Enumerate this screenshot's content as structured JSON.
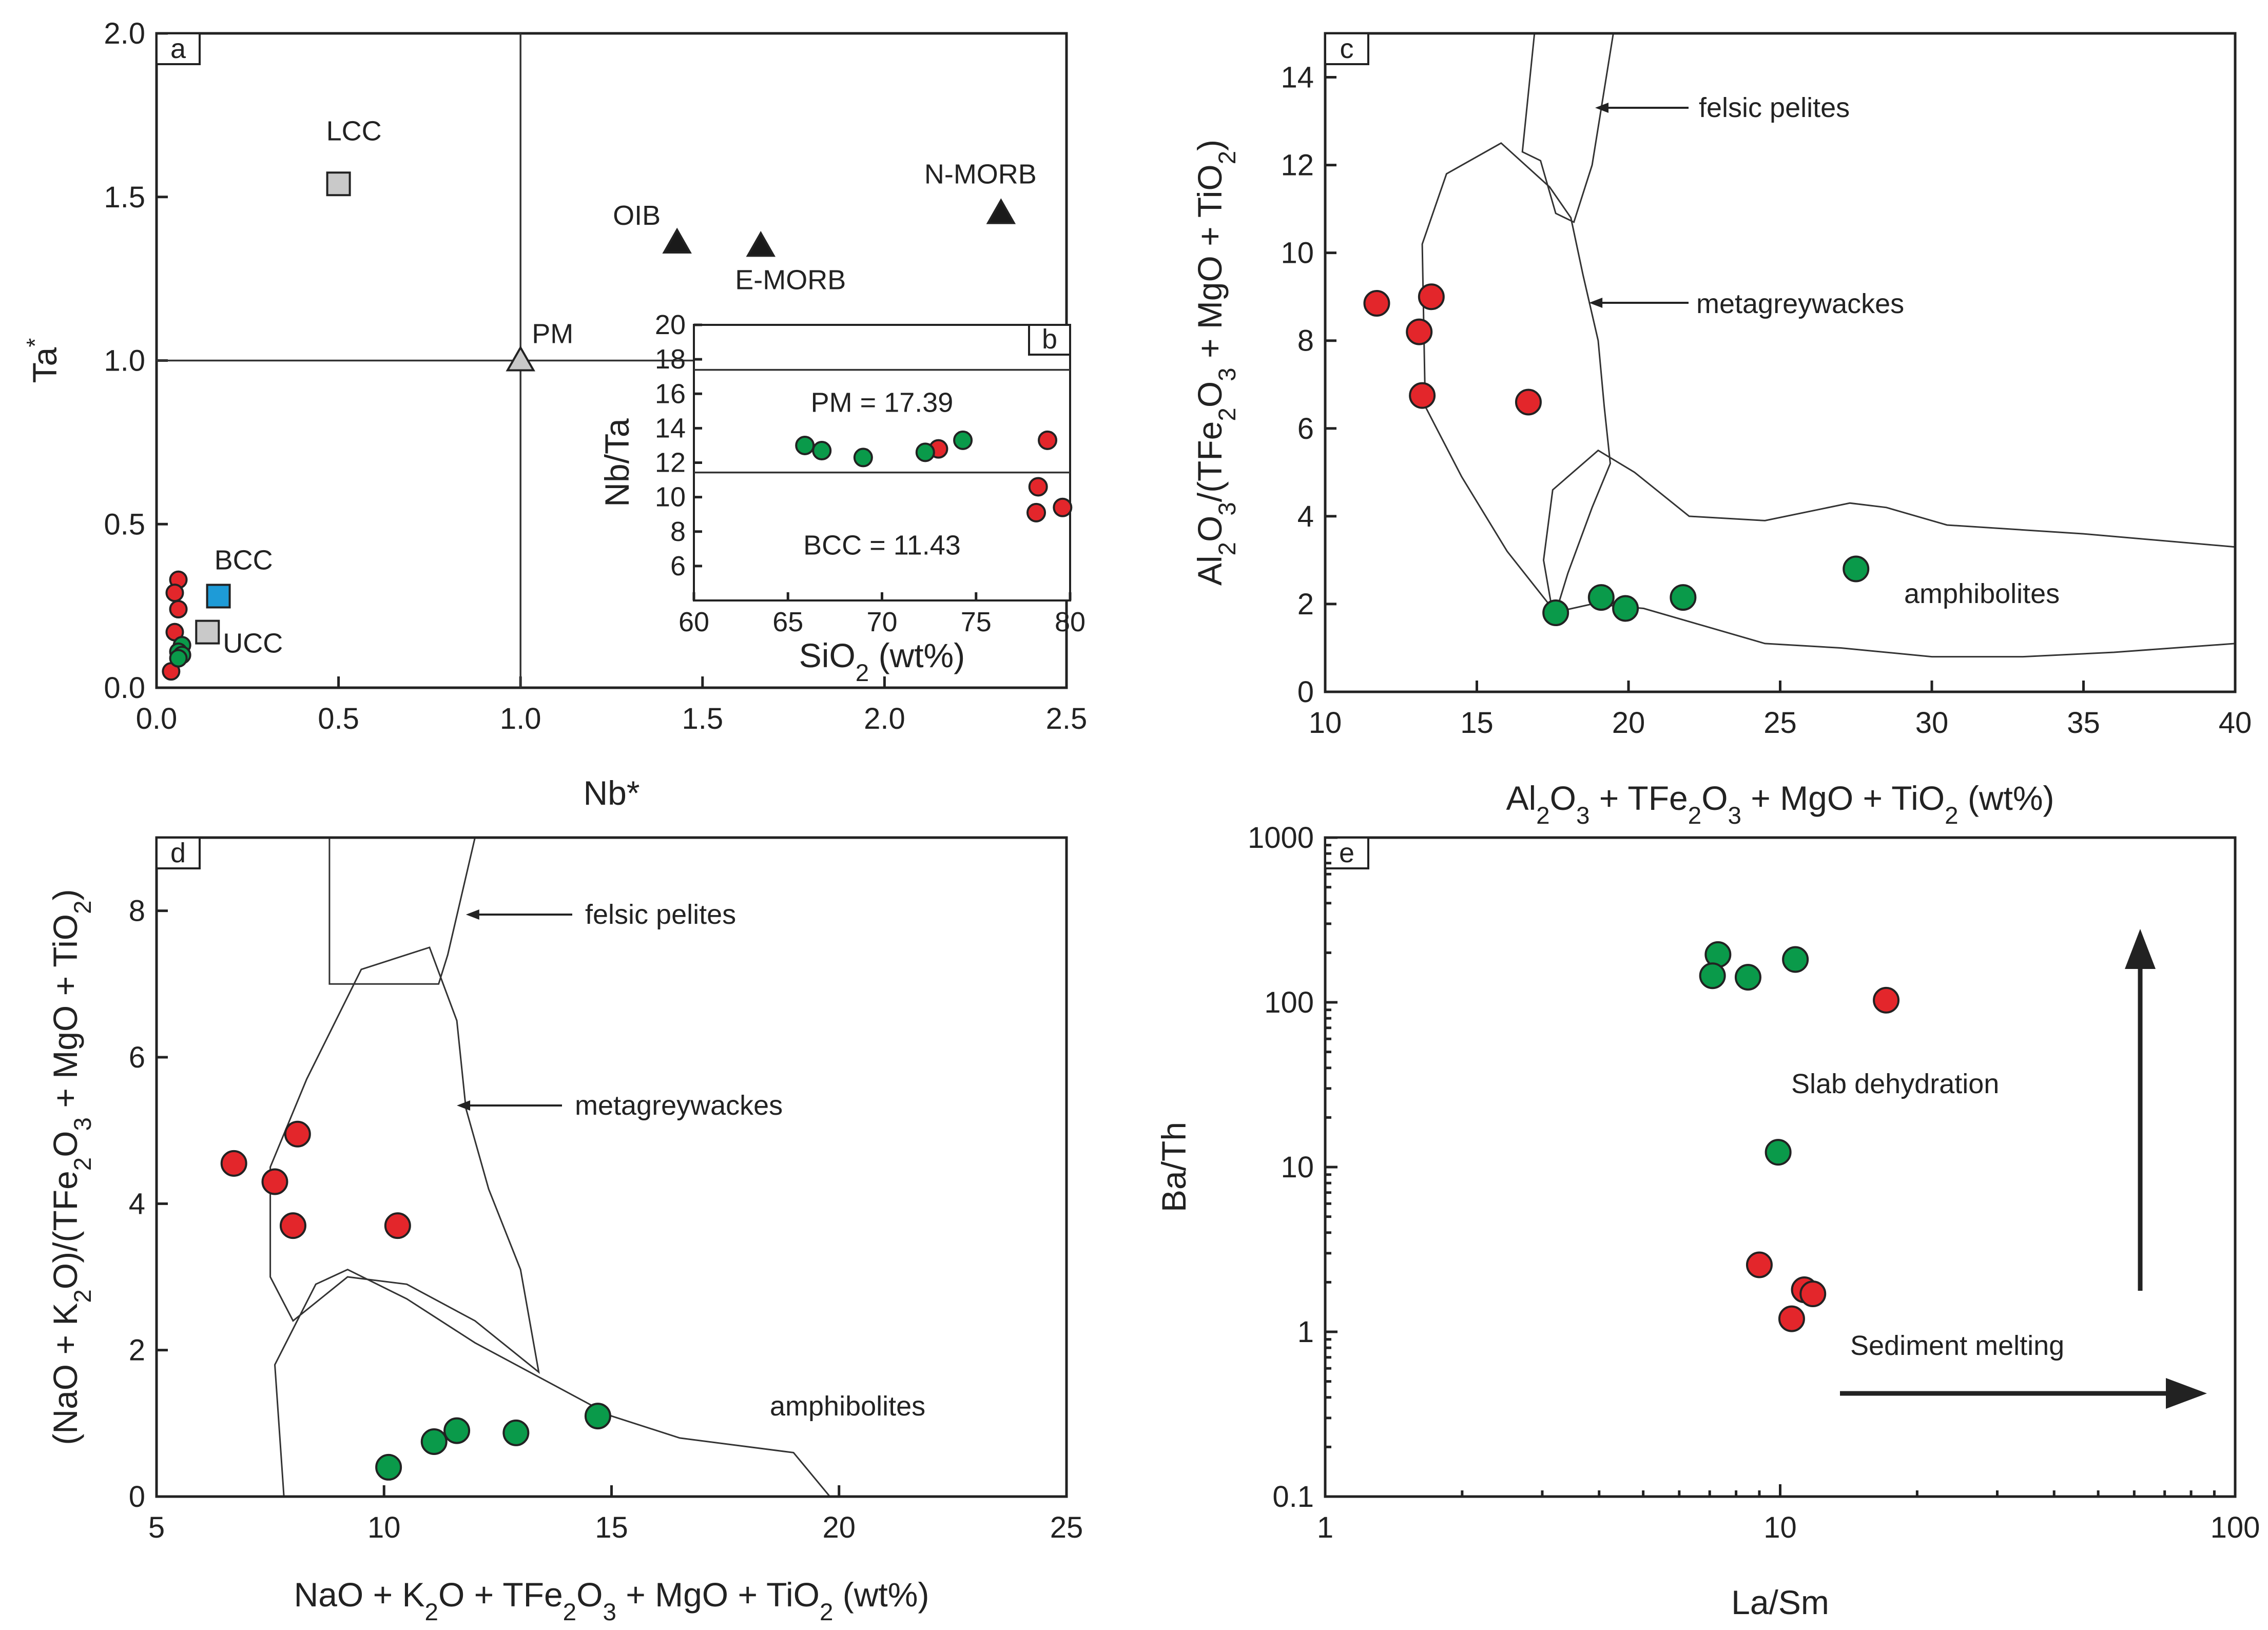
{
  "colors": {
    "red": "#e3262b",
    "green": "#0a9a4a",
    "blue": "#1e9bd7",
    "gray": "#c9c9c9",
    "black": "#1a1a1a",
    "marker_edge": "#222222"
  },
  "chart_data": [
    {
      "panel": "a",
      "type": "scatter",
      "xlabel": "Nb*",
      "ylabel": "Ta*",
      "xlim": [
        0,
        2.5
      ],
      "ylim": [
        0,
        2.0
      ],
      "xticks": [
        "0.0",
        "0.5",
        "1.0",
        "1.5",
        "2.0",
        "2.5"
      ],
      "yticks": [
        "0.0",
        "0.5",
        "1.0",
        "1.5",
        "2.0"
      ],
      "reference_lines": {
        "x": 1.0,
        "y": 1.0
      },
      "series": [
        {
          "color": "red",
          "marker": "circle",
          "points": [
            [
              0.06,
              0.33
            ],
            [
              0.05,
              0.29
            ],
            [
              0.06,
              0.24
            ],
            [
              0.05,
              0.17
            ],
            [
              0.04,
              0.05
            ]
          ]
        },
        {
          "color": "green",
          "marker": "circle",
          "points": [
            [
              0.07,
              0.13
            ],
            [
              0.06,
              0.11
            ],
            [
              0.07,
              0.1
            ],
            [
              0.06,
              0.09
            ]
          ]
        }
      ],
      "references": [
        {
          "label": "LCC",
          "x": 0.5,
          "y": 1.54,
          "marker": "square",
          "color": "gray"
        },
        {
          "label": "BCC",
          "x": 0.17,
          "y": 0.28,
          "marker": "square",
          "color": "blue"
        },
        {
          "label": "UCC",
          "x": 0.14,
          "y": 0.17,
          "marker": "square",
          "color": "gray"
        },
        {
          "label": "PM",
          "x": 1.0,
          "y": 1.0,
          "marker": "triangle",
          "color": "gray"
        },
        {
          "label": "OIB",
          "x": 1.43,
          "y": 1.36,
          "marker": "triangle",
          "color": "black"
        },
        {
          "label": "E-MORB",
          "x": 1.66,
          "y": 1.35,
          "marker": "triangle",
          "color": "black"
        },
        {
          "label": "N-MORB",
          "x": 2.32,
          "y": 1.45,
          "marker": "triangle",
          "color": "black"
        }
      ]
    },
    {
      "panel": "b",
      "type": "scatter",
      "xlabel": "SiO2 (wt%)",
      "ylabel": "Nb/Ta",
      "xlim": [
        60,
        80
      ],
      "ylim": [
        4,
        20
      ],
      "xticks": [
        "60",
        "65",
        "70",
        "75",
        "80"
      ],
      "yticks": [
        "6",
        "8",
        "10",
        "12",
        "14",
        "16",
        "18",
        "20"
      ],
      "reference_lines": [
        {
          "y": 17.39,
          "label": "PM = 17.39"
        },
        {
          "y": 11.43,
          "label": "BCC = 11.43"
        }
      ],
      "series": [
        {
          "color": "red",
          "marker": "circle",
          "points": [
            [
              73.0,
              12.8
            ],
            [
              78.8,
              13.3
            ],
            [
              78.3,
              10.6
            ],
            [
              78.2,
              9.1
            ],
            [
              79.6,
              9.4
            ]
          ]
        },
        {
          "color": "green",
          "marker": "circle",
          "points": [
            [
              65.9,
              13.0
            ],
            [
              66.8,
              12.7
            ],
            [
              69.0,
              12.3
            ],
            [
              72.3,
              12.6
            ],
            [
              74.3,
              13.3
            ]
          ]
        }
      ]
    },
    {
      "panel": "c",
      "type": "scatter",
      "xlabel": "Al2O3 + TFe2O3 + MgO + TiO2 (wt%)",
      "ylabel": "Al2O3/(TFe2O3 + MgO + TiO2)",
      "xlim": [
        10,
        40
      ],
      "ylim": [
        0,
        15
      ],
      "xticks": [
        "10",
        "15",
        "20",
        "25",
        "30",
        "35",
        "40"
      ],
      "yticks": [
        "0",
        "2",
        "4",
        "6",
        "8",
        "10",
        "12",
        "14"
      ],
      "fields": [
        {
          "label": "felsic pelites",
          "outline": [
            [
              16.5,
              12.3
            ],
            [
              16.9,
              15.0
            ],
            [
              19.5,
              15.0
            ],
            [
              18.8,
              12.0
            ],
            [
              18.2,
              10.7
            ],
            [
              17.6,
              10.9
            ],
            [
              17.1,
              12.1
            ]
          ]
        },
        {
          "label": "metagreywackes",
          "outline": [
            [
              13.3,
              6.5
            ],
            [
              13.2,
              10.2
            ],
            [
              14.0,
              11.8
            ],
            [
              15.8,
              12.5
            ],
            [
              17.4,
              11.5
            ],
            [
              18.1,
              10.8
            ],
            [
              18.5,
              9.5
            ],
            [
              19.0,
              8.0
            ],
            [
              19.2,
              6.5
            ],
            [
              19.4,
              5.2
            ],
            [
              18.8,
              4.2
            ],
            [
              18.0,
              2.7
            ],
            [
              17.6,
              1.8
            ],
            [
              16.0,
              3.2
            ],
            [
              14.5,
              4.9
            ]
          ]
        },
        {
          "label": "amphibolites",
          "outline": [
            [
              17.5,
              1.8
            ],
            [
              17.2,
              3.0
            ],
            [
              17.5,
              4.6
            ],
            [
              19.0,
              5.5
            ],
            [
              20.2,
              5.0
            ],
            [
              22.0,
              4.0
            ],
            [
              24.5,
              3.9
            ],
            [
              27.3,
              4.3
            ],
            [
              28.5,
              4.2
            ],
            [
              30.5,
              3.8
            ],
            [
              35.0,
              3.6
            ],
            [
              40.0,
              3.3
            ],
            [
              40.0,
              1.1
            ],
            [
              36.0,
              0.9
            ],
            [
              33.0,
              0.8
            ],
            [
              30.0,
              0.8
            ],
            [
              27.0,
              1.0
            ],
            [
              24.5,
              1.1
            ],
            [
              22.5,
              1.5
            ],
            [
              20.5,
              1.9
            ],
            [
              18.8,
              2.0
            ]
          ]
        }
      ],
      "series": [
        {
          "color": "red",
          "marker": "circle",
          "points": [
            [
              11.7,
              8.85
            ],
            [
              13.5,
              9.0
            ],
            [
              13.1,
              8.2
            ],
            [
              13.2,
              6.75
            ],
            [
              16.7,
              6.6
            ]
          ]
        },
        {
          "color": "green",
          "marker": "circle",
          "points": [
            [
              17.6,
              1.8
            ],
            [
              19.1,
              2.15
            ],
            [
              19.9,
              1.9
            ],
            [
              21.8,
              2.15
            ],
            [
              27.5,
              2.8
            ]
          ]
        }
      ]
    },
    {
      "panel": "d",
      "type": "scatter",
      "xlabel": "NaO + K2O + TFe2O3 + MgO + TiO2 (wt%)",
      "ylabel": "(NaO + K2O)/(TFe2O3 + MgO + TiO2)",
      "xlim": [
        5,
        25
      ],
      "ylim": [
        0,
        9
      ],
      "xticks": [
        "5",
        "10",
        "15",
        "20",
        "25"
      ],
      "yticks": [
        "0",
        "2",
        "4",
        "6",
        "8"
      ],
      "fields": [
        {
          "label": "felsic pelites",
          "outline": [
            [
              8.8,
              7.0
            ],
            [
              8.8,
              9.0
            ],
            [
              12.0,
              9.0
            ],
            [
              11.4,
              7.4
            ],
            [
              11.2,
              7.0
            ]
          ]
        },
        {
          "label": "metagreywackes",
          "outline": [
            [
              8.0,
              2.4
            ],
            [
              7.5,
              3.0
            ],
            [
              7.5,
              4.5
            ],
            [
              8.3,
              5.7
            ],
            [
              9.5,
              7.2
            ],
            [
              11.0,
              7.5
            ],
            [
              11.6,
              6.5
            ],
            [
              11.8,
              5.3
            ],
            [
              12.3,
              4.2
            ],
            [
              13.0,
              3.1
            ],
            [
              13.4,
              1.7
            ],
            [
              12.0,
              2.4
            ],
            [
              10.5,
              2.9
            ],
            [
              9.2,
              3.0
            ]
          ]
        },
        {
          "label": "amphibolites",
          "outline": [
            [
              7.8,
              0.0
            ],
            [
              7.6,
              1.8
            ],
            [
              8.5,
              2.9
            ],
            [
              9.2,
              3.1
            ],
            [
              10.5,
              2.7
            ],
            [
              12.0,
              2.1
            ],
            [
              13.5,
              1.6
            ],
            [
              15.0,
              1.1
            ],
            [
              16.5,
              0.8
            ],
            [
              19.0,
              0.6
            ],
            [
              19.8,
              0.0
            ]
          ]
        }
      ],
      "series": [
        {
          "color": "red",
          "marker": "circle",
          "points": [
            [
              6.7,
              4.55
            ],
            [
              8.1,
              4.95
            ],
            [
              7.6,
              4.3
            ],
            [
              8.0,
              3.7
            ],
            [
              10.3,
              3.7
            ]
          ]
        },
        {
          "color": "green",
          "marker": "circle",
          "points": [
            [
              10.1,
              0.4
            ],
            [
              11.1,
              0.75
            ],
            [
              11.6,
              0.9
            ],
            [
              12.9,
              0.87
            ],
            [
              14.7,
              1.1
            ]
          ]
        }
      ]
    },
    {
      "panel": "e",
      "type": "scatter",
      "xlabel": "La/Sm",
      "ylabel": "Ba/Th",
      "xscale": "log",
      "yscale": "log",
      "xlim": [
        1,
        100
      ],
      "ylim": [
        0.1,
        1000
      ],
      "xticks": [
        "1",
        "10",
        "100"
      ],
      "yticks": [
        "0.1",
        "1",
        "10",
        "100",
        "1000"
      ],
      "annotations": [
        "Slab dehydration",
        "Sediment melting"
      ],
      "series": [
        {
          "color": "green",
          "marker": "circle",
          "points": [
            [
              7.3,
              195
            ],
            [
              7.1,
              145
            ],
            [
              8.5,
              142
            ],
            [
              10.8,
              182
            ],
            [
              9.9,
              12.3
            ]
          ]
        },
        {
          "color": "red",
          "marker": "circle",
          "points": [
            [
              17.1,
              103
            ],
            [
              9.0,
              2.55
            ],
            [
              11.3,
              1.8
            ],
            [
              11.8,
              1.7
            ],
            [
              10.6,
              1.2
            ]
          ]
        }
      ]
    }
  ]
}
